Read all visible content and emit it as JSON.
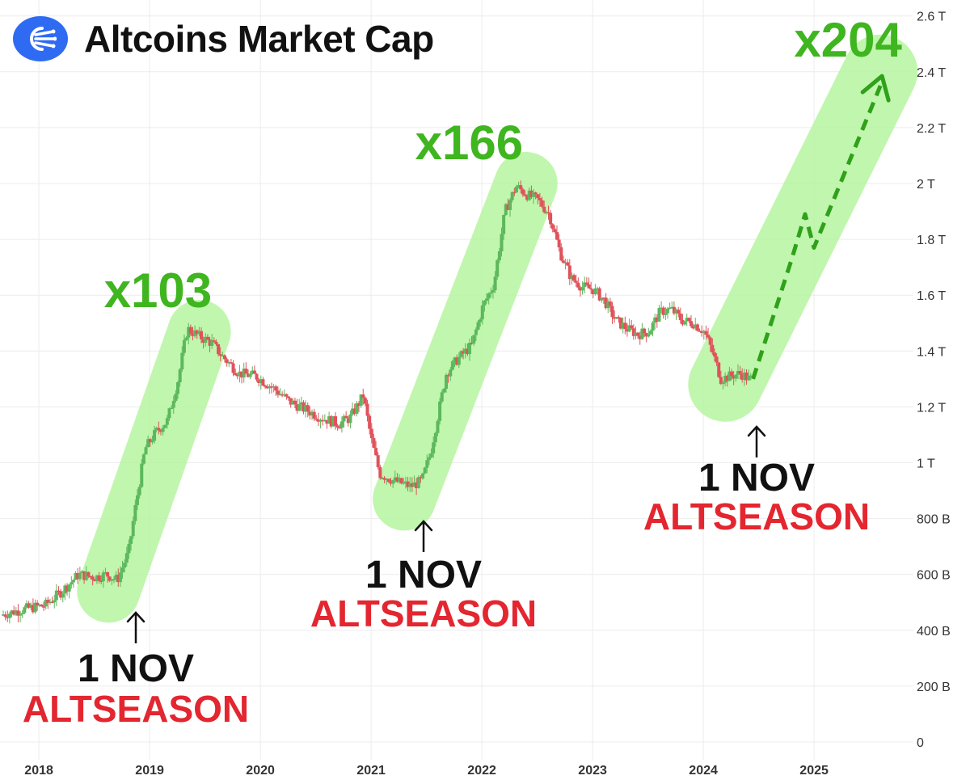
{
  "header": {
    "title": "Altcoins Market Cap",
    "logo_icon": "coinstats-logo-icon"
  },
  "colors": {
    "up": "#5cb85c",
    "down": "#e0525b",
    "highlight": "#b6f5a0",
    "multiplier": "#3fb51f",
    "altseason": "#e3262f",
    "nov": "#111111",
    "logo": "#2f6bf2",
    "grid": "#ececec",
    "axis_text": "#333333"
  },
  "chart_data": {
    "type": "candlestick",
    "title": "Altcoins Market Cap",
    "x_ticks": [
      "2018",
      "2019",
      "2020",
      "2021",
      "2022",
      "2023",
      "2024",
      "2025"
    ],
    "y_ticks": [
      "0",
      "200 B",
      "400 B",
      "600 B",
      "800 B",
      "1 T",
      "1.2 T",
      "1.4 T",
      "1.6 T",
      "1.8 T",
      "2 T",
      "2.2 T",
      "2.4 T",
      "2.6 T"
    ],
    "ylim": [
      0,
      2600
    ],
    "y_unit": "B",
    "grid": true,
    "trend_points": [
      [
        2017.7,
        455
      ],
      [
        2017.9,
        475
      ],
      [
        2018.1,
        490
      ],
      [
        2018.25,
        540
      ],
      [
        2018.4,
        600
      ],
      [
        2018.55,
        590
      ],
      [
        2018.65,
        600
      ],
      [
        2018.75,
        580
      ],
      [
        2018.85,
        680
      ],
      [
        2018.92,
        860
      ],
      [
        2019.0,
        1050
      ],
      [
        2019.1,
        1110
      ],
      [
        2019.2,
        1150
      ],
      [
        2019.3,
        1300
      ],
      [
        2019.38,
        1480
      ],
      [
        2019.5,
        1450
      ],
      [
        2019.6,
        1430
      ],
      [
        2019.7,
        1380
      ],
      [
        2019.85,
        1320
      ],
      [
        2020.0,
        1310
      ],
      [
        2020.15,
        1270
      ],
      [
        2020.3,
        1220
      ],
      [
        2020.45,
        1190
      ],
      [
        2020.6,
        1160
      ],
      [
        2020.75,
        1140
      ],
      [
        2020.85,
        1160
      ],
      [
        2020.97,
        1240
      ],
      [
        2021.05,
        1070
      ],
      [
        2021.12,
        960
      ],
      [
        2021.25,
        935
      ],
      [
        2021.4,
        915
      ],
      [
        2021.5,
        935
      ],
      [
        2021.58,
        1040
      ],
      [
        2021.65,
        1180
      ],
      [
        2021.72,
        1320
      ],
      [
        2021.82,
        1370
      ],
      [
        2021.95,
        1420
      ],
      [
        2022.05,
        1560
      ],
      [
        2022.15,
        1640
      ],
      [
        2022.25,
        1900
      ],
      [
        2022.35,
        1990
      ],
      [
        2022.45,
        1960
      ],
      [
        2022.55,
        1940
      ],
      [
        2022.65,
        1890
      ],
      [
        2022.75,
        1750
      ],
      [
        2022.85,
        1660
      ],
      [
        2022.95,
        1630
      ],
      [
        2023.05,
        1620
      ],
      [
        2023.15,
        1580
      ],
      [
        2023.25,
        1510
      ],
      [
        2023.35,
        1480
      ],
      [
        2023.45,
        1460
      ],
      [
        2023.55,
        1470
      ],
      [
        2023.65,
        1540
      ],
      [
        2023.75,
        1550
      ],
      [
        2023.85,
        1510
      ],
      [
        2023.95,
        1500
      ],
      [
        2024.05,
        1470
      ],
      [
        2024.12,
        1400
      ],
      [
        2024.2,
        1300
      ],
      [
        2024.28,
        1310
      ],
      [
        2024.38,
        1320
      ],
      [
        2024.45,
        1300
      ]
    ],
    "highlights": [
      {
        "from": [
          2018.68,
          540
        ],
        "to": [
          2019.5,
          1470
        ],
        "label": "x103"
      },
      {
        "from": [
          2021.35,
          870
        ],
        "to": [
          2022.45,
          2000
        ],
        "label": "x166"
      },
      {
        "from": [
          2024.25,
          1280
        ],
        "to": [
          2025.65,
          2400
        ],
        "label": "x204"
      }
    ],
    "projection": [
      [
        2024.5,
        1300
      ],
      [
        2024.85,
        1730
      ],
      [
        2024.97,
        1890
      ],
      [
        2025.05,
        1770
      ],
      [
        2025.65,
        2350
      ]
    ],
    "annotations": [
      {
        "x": 2018.98,
        "y_line1": "1 NOV",
        "y_line2": "ALTSEASON",
        "side": "below"
      },
      {
        "x": 2021.45,
        "y_line1": "1 NOV",
        "y_line2": "ALTSEASON",
        "side": "below"
      },
      {
        "x": 2024.4,
        "y_line1": "1 NOV",
        "y_line2": "ALTSEASON",
        "side": "below"
      }
    ]
  }
}
